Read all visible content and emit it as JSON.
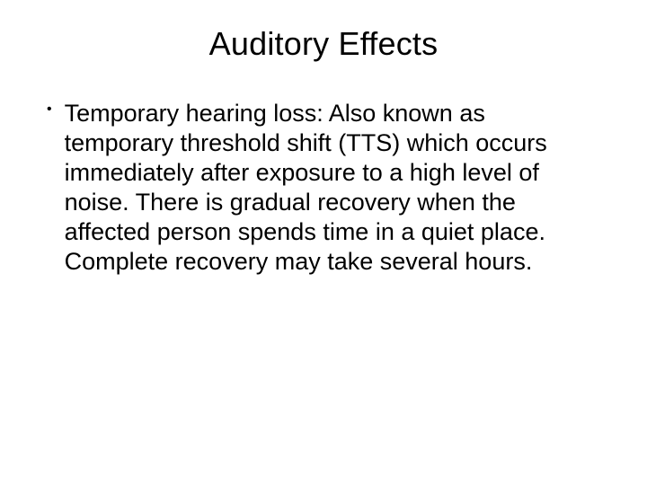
{
  "slide": {
    "title": "Auditory Effects",
    "bullets": [
      {
        "text": "Temporary hearing loss: Also known as temporary threshold shift (TTS) which occurs immediately after exposure to a high level of noise. There is gradual recovery when the affected person spends time in a quiet place. Complete recovery may take several hours."
      }
    ],
    "background_color": "#ffffff",
    "text_color": "#000000",
    "title_fontsize": 36,
    "body_fontsize": 27
  }
}
